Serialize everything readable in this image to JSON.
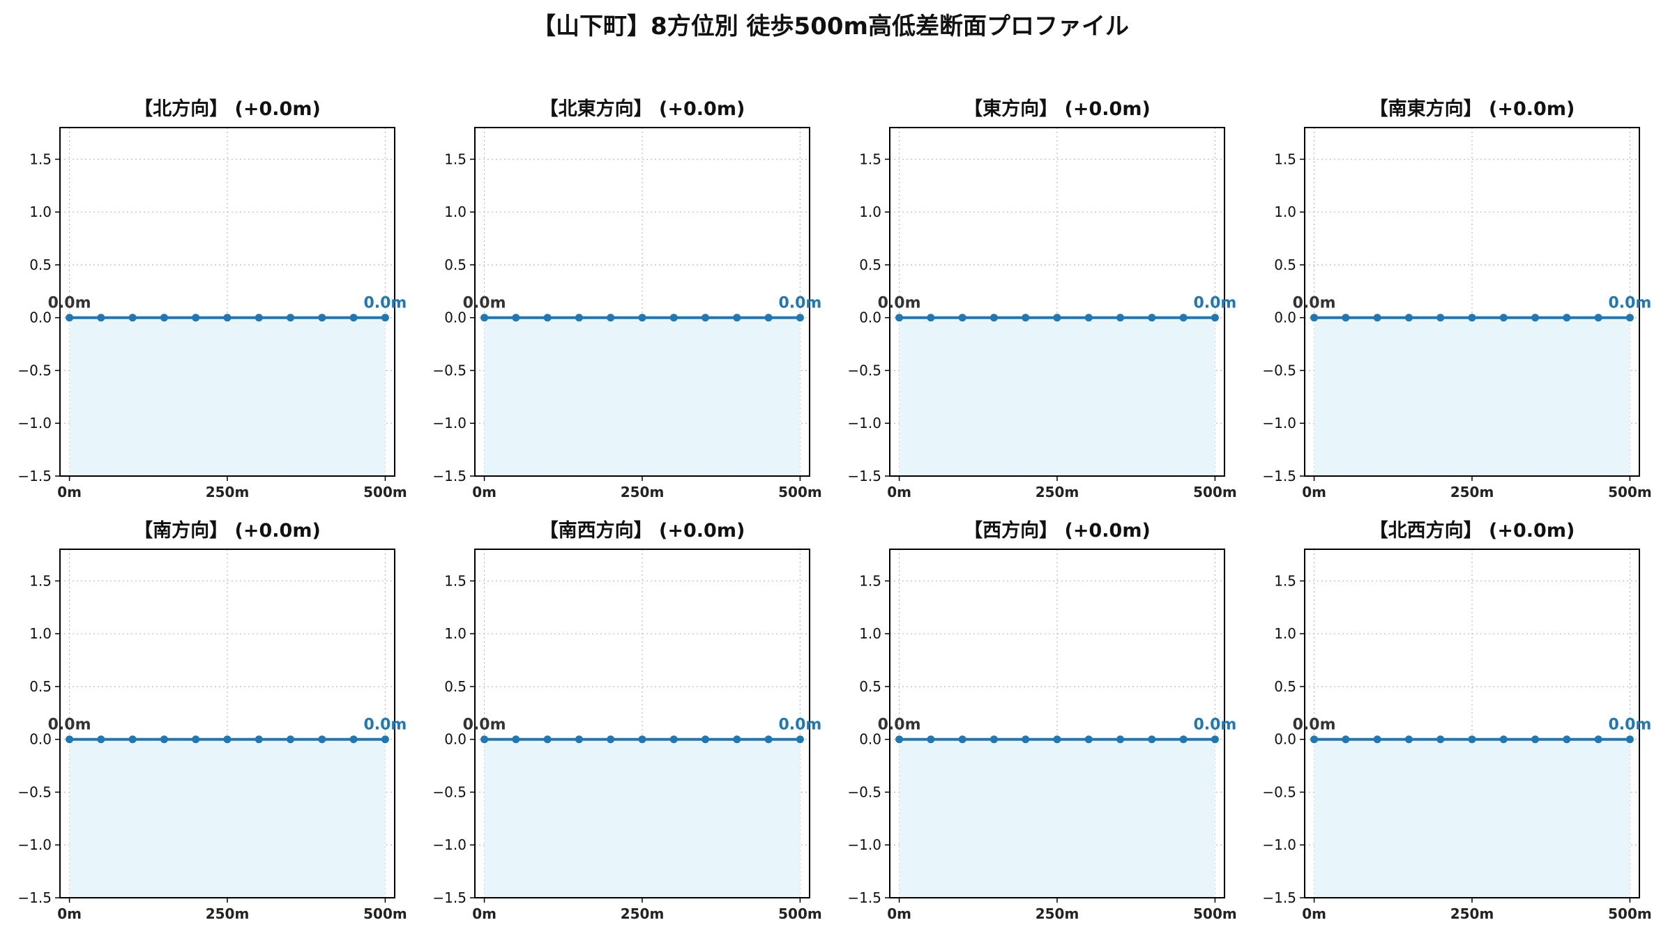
{
  "title": "【山下町】8方位別 徒歩500m高低差断面プロファイル",
  "colors": {
    "line": "#1f77b4",
    "fill": "#e8f6fb",
    "end_label": "#1f77b4",
    "start_label": "#333333",
    "grid": "#bbbbbb"
  },
  "chart_data": [
    {
      "type": "line",
      "title": "【北方向】 (+0.0m)",
      "x": [
        0,
        50,
        100,
        150,
        200,
        250,
        300,
        350,
        400,
        450,
        500
      ],
      "y": [
        0,
        0,
        0,
        0,
        0,
        0,
        0,
        0,
        0,
        0,
        0
      ],
      "xticks": [
        "0m",
        "250m",
        "500m"
      ],
      "xtick_values": [
        0,
        250,
        500
      ],
      "yticks": [
        "−1.5",
        "−1.0",
        "−0.5",
        "0.0",
        "0.5",
        "1.0",
        "1.5"
      ],
      "ytick_values": [
        -1.5,
        -1.0,
        -0.5,
        0.0,
        0.5,
        1.0,
        1.5
      ],
      "xlim": [
        -15,
        515
      ],
      "ylim": [
        -1.5,
        1.8
      ],
      "start_label": "0.0m",
      "end_label": "0.0m",
      "grid": true
    },
    {
      "type": "line",
      "title": "【北東方向】 (+0.0m)",
      "x": [
        0,
        50,
        100,
        150,
        200,
        250,
        300,
        350,
        400,
        450,
        500
      ],
      "y": [
        0,
        0,
        0,
        0,
        0,
        0,
        0,
        0,
        0,
        0,
        0
      ],
      "xticks": [
        "0m",
        "250m",
        "500m"
      ],
      "xtick_values": [
        0,
        250,
        500
      ],
      "yticks": [
        "−1.5",
        "−1.0",
        "−0.5",
        "0.0",
        "0.5",
        "1.0",
        "1.5"
      ],
      "ytick_values": [
        -1.5,
        -1.0,
        -0.5,
        0.0,
        0.5,
        1.0,
        1.5
      ],
      "xlim": [
        -15,
        515
      ],
      "ylim": [
        -1.5,
        1.8
      ],
      "start_label": "0.0m",
      "end_label": "0.0m",
      "grid": true
    },
    {
      "type": "line",
      "title": "【東方向】 (+0.0m)",
      "x": [
        0,
        50,
        100,
        150,
        200,
        250,
        300,
        350,
        400,
        450,
        500
      ],
      "y": [
        0,
        0,
        0,
        0,
        0,
        0,
        0,
        0,
        0,
        0,
        0
      ],
      "xticks": [
        "0m",
        "250m",
        "500m"
      ],
      "xtick_values": [
        0,
        250,
        500
      ],
      "yticks": [
        "−1.5",
        "−1.0",
        "−0.5",
        "0.0",
        "0.5",
        "1.0",
        "1.5"
      ],
      "ytick_values": [
        -1.5,
        -1.0,
        -0.5,
        0.0,
        0.5,
        1.0,
        1.5
      ],
      "xlim": [
        -15,
        515
      ],
      "ylim": [
        -1.5,
        1.8
      ],
      "start_label": "0.0m",
      "end_label": "0.0m",
      "grid": true
    },
    {
      "type": "line",
      "title": "【南東方向】 (+0.0m)",
      "x": [
        0,
        50,
        100,
        150,
        200,
        250,
        300,
        350,
        400,
        450,
        500
      ],
      "y": [
        0,
        0,
        0,
        0,
        0,
        0,
        0,
        0,
        0,
        0,
        0
      ],
      "xticks": [
        "0m",
        "250m",
        "500m"
      ],
      "xtick_values": [
        0,
        250,
        500
      ],
      "yticks": [
        "−1.5",
        "−1.0",
        "−0.5",
        "0.0",
        "0.5",
        "1.0",
        "1.5"
      ],
      "ytick_values": [
        -1.5,
        -1.0,
        -0.5,
        0.0,
        0.5,
        1.0,
        1.5
      ],
      "xlim": [
        -15,
        515
      ],
      "ylim": [
        -1.5,
        1.8
      ],
      "start_label": "0.0m",
      "end_label": "0.0m",
      "grid": true
    },
    {
      "type": "line",
      "title": "【南方向】 (+0.0m)",
      "x": [
        0,
        50,
        100,
        150,
        200,
        250,
        300,
        350,
        400,
        450,
        500
      ],
      "y": [
        0,
        0,
        0,
        0,
        0,
        0,
        0,
        0,
        0,
        0,
        0
      ],
      "xticks": [
        "0m",
        "250m",
        "500m"
      ],
      "xtick_values": [
        0,
        250,
        500
      ],
      "yticks": [
        "−1.5",
        "−1.0",
        "−0.5",
        "0.0",
        "0.5",
        "1.0",
        "1.5"
      ],
      "ytick_values": [
        -1.5,
        -1.0,
        -0.5,
        0.0,
        0.5,
        1.0,
        1.5
      ],
      "xlim": [
        -15,
        515
      ],
      "ylim": [
        -1.5,
        1.8
      ],
      "start_label": "0.0m",
      "end_label": "0.0m",
      "grid": true
    },
    {
      "type": "line",
      "title": "【南西方向】 (+0.0m)",
      "x": [
        0,
        50,
        100,
        150,
        200,
        250,
        300,
        350,
        400,
        450,
        500
      ],
      "y": [
        0,
        0,
        0,
        0,
        0,
        0,
        0,
        0,
        0,
        0,
        0
      ],
      "xticks": [
        "0m",
        "250m",
        "500m"
      ],
      "xtick_values": [
        0,
        250,
        500
      ],
      "yticks": [
        "−1.5",
        "−1.0",
        "−0.5",
        "0.0",
        "0.5",
        "1.0",
        "1.5"
      ],
      "ytick_values": [
        -1.5,
        -1.0,
        -0.5,
        0.0,
        0.5,
        1.0,
        1.5
      ],
      "xlim": [
        -15,
        515
      ],
      "ylim": [
        -1.5,
        1.8
      ],
      "start_label": "0.0m",
      "end_label": "0.0m",
      "grid": true
    },
    {
      "type": "line",
      "title": "【西方向】 (+0.0m)",
      "x": [
        0,
        50,
        100,
        150,
        200,
        250,
        300,
        350,
        400,
        450,
        500
      ],
      "y": [
        0,
        0,
        0,
        0,
        0,
        0,
        0,
        0,
        0,
        0,
        0
      ],
      "xticks": [
        "0m",
        "250m",
        "500m"
      ],
      "xtick_values": [
        0,
        250,
        500
      ],
      "yticks": [
        "−1.5",
        "−1.0",
        "−0.5",
        "0.0",
        "0.5",
        "1.0",
        "1.5"
      ],
      "ytick_values": [
        -1.5,
        -1.0,
        -0.5,
        0.0,
        0.5,
        1.0,
        1.5
      ],
      "xlim": [
        -15,
        515
      ],
      "ylim": [
        -1.5,
        1.8
      ],
      "start_label": "0.0m",
      "end_label": "0.0m",
      "grid": true
    },
    {
      "type": "line",
      "title": "【北西方向】 (+0.0m)",
      "x": [
        0,
        50,
        100,
        150,
        200,
        250,
        300,
        350,
        400,
        450,
        500
      ],
      "y": [
        0,
        0,
        0,
        0,
        0,
        0,
        0,
        0,
        0,
        0,
        0
      ],
      "xticks": [
        "0m",
        "250m",
        "500m"
      ],
      "xtick_values": [
        0,
        250,
        500
      ],
      "yticks": [
        "−1.5",
        "−1.0",
        "−0.5",
        "0.0",
        "0.5",
        "1.0",
        "1.5"
      ],
      "ytick_values": [
        -1.5,
        -1.0,
        -0.5,
        0.0,
        0.5,
        1.0,
        1.5
      ],
      "xlim": [
        -15,
        515
      ],
      "ylim": [
        -1.5,
        1.8
      ],
      "start_label": "0.0m",
      "end_label": "0.0m",
      "grid": true
    }
  ]
}
